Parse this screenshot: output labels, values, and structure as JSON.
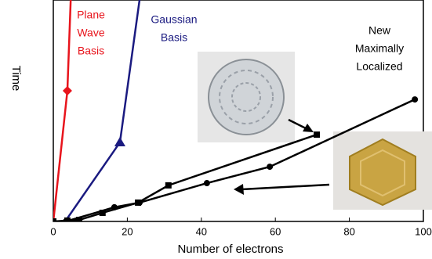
{
  "chart_data": {
    "type": "line",
    "x_label": "Number of electrons",
    "y_label": "Time",
    "xlim": [
      0,
      100
    ],
    "xticks": [
      0,
      20,
      40,
      60,
      80,
      100
    ],
    "ylim": [
      0,
      100
    ],
    "series": [
      {
        "color": "#e8141c",
        "marker": "diamond",
        "marker_at": [
          1
        ],
        "x": [
          0,
          3.8,
          4.7
        ],
        "values": [
          0,
          59,
          100
        ]
      },
      {
        "color": "#1a1a80",
        "marker": "triangle",
        "marker_at": [
          1
        ],
        "x": [
          3.2,
          18,
          23.3
        ],
        "values": [
          0,
          35.7,
          100
        ]
      },
      {
        "color": "#000000",
        "marker": "square",
        "x": [
          0,
          3.8,
          7,
          13.3,
          22.9,
          31.1,
          71.2
        ],
        "values": [
          0,
          0.4,
          0.7,
          3.9,
          8.5,
          16.3,
          39.2
        ]
      },
      {
        "color": "#000000",
        "marker": "circle",
        "x": [
          0,
          3.4,
          16.5,
          23.3,
          41.5,
          58.5,
          97.7
        ],
        "values": [
          0,
          0,
          6.4,
          8.5,
          17.3,
          24.7,
          55.1
        ]
      }
    ],
    "annotations": [
      {
        "color": "#e8141c",
        "lines": [
          "Plane",
          "Wave",
          "Basis"
        ]
      },
      {
        "color": "#1a1a80",
        "lines": [
          "Gaussian",
          "Basis"
        ]
      },
      {
        "color": "#000000",
        "lines": [
          "New",
          "Maximally",
          "Localized"
        ]
      }
    ]
  }
}
